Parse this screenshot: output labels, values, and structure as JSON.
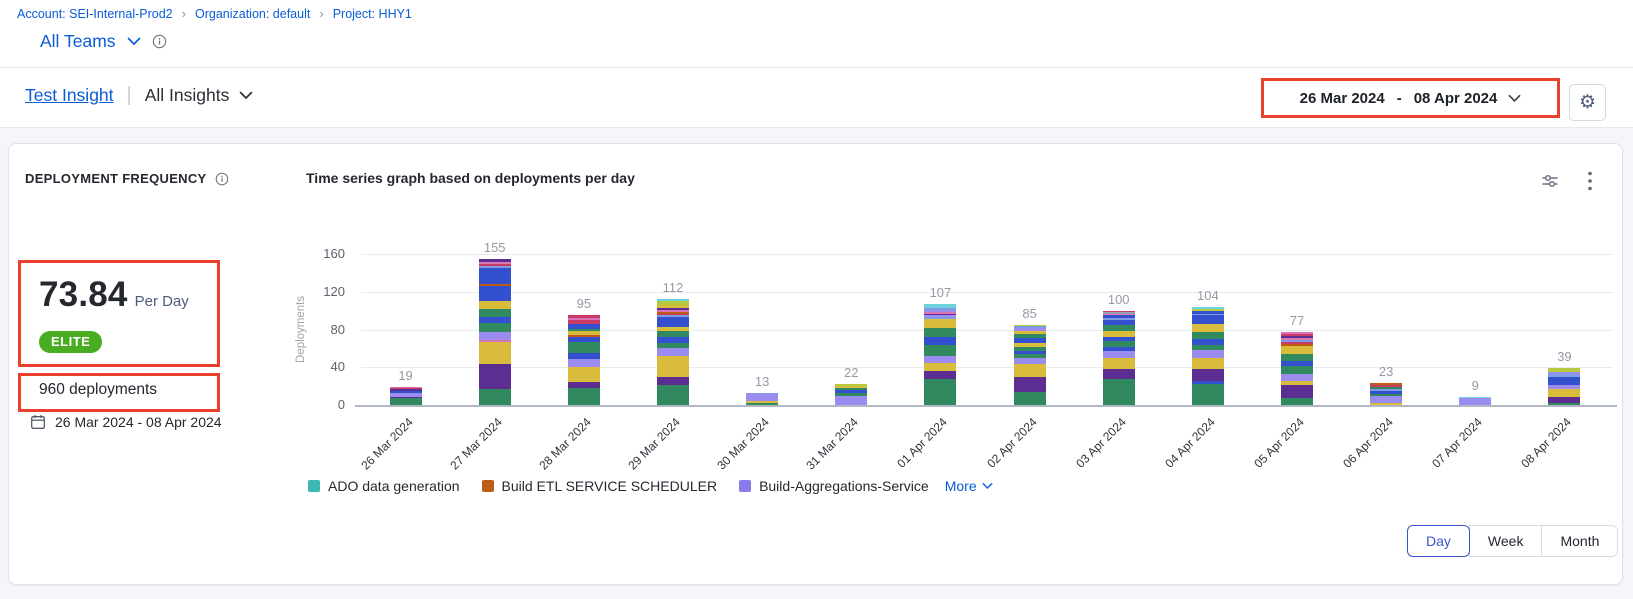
{
  "breadcrumb": {
    "items": [
      {
        "label": "Account: SEI-Internal-Prod2"
      },
      {
        "label": "Organization: default"
      },
      {
        "label": "Project: HHY1"
      }
    ]
  },
  "teams": {
    "label": "All Teams"
  },
  "insight": {
    "name": "Test Insight",
    "scope": "All Insights"
  },
  "date_range": {
    "start": "26 Mar 2024",
    "separator": "-",
    "end": "08 Apr 2024"
  },
  "widget": {
    "title": "DEPLOYMENT FREQUENCY",
    "metric_value": "73.84",
    "metric_unit": "Per Day",
    "badge": "ELITE",
    "total_label": "960 deployments",
    "period": "26 Mar 2024 - 08 Apr 2024"
  },
  "legend_more": "More",
  "granularity": {
    "options": [
      "Day",
      "Week",
      "Month"
    ],
    "selected": "Day"
  },
  "colors": {
    "accent_blue": "#0b5cd7",
    "annotation_red": "#e8402c",
    "badge_green": "#4aad21"
  },
  "chart_data": {
    "type": "bar",
    "stacked": true,
    "title": "Time series graph based on deployments per day",
    "xlabel": "",
    "ylabel": "Deployments",
    "ylim": [
      0,
      160
    ],
    "yticks": [
      0,
      40,
      80,
      120,
      160
    ],
    "grid": true,
    "legend_position": "bottom",
    "categories": [
      "26 Mar 2024",
      "27 Mar 2024",
      "28 Mar 2024",
      "29 Mar 2024",
      "30 Mar 2024",
      "31 Mar 2024",
      "01 Apr 2024",
      "02 Apr 2024",
      "03 Apr 2024",
      "04 Apr 2024",
      "05 Apr 2024",
      "06 Apr 2024",
      "07 Apr 2024",
      "08 Apr 2024"
    ],
    "totals": [
      19,
      155,
      95,
      112,
      13,
      22,
      107,
      85,
      100,
      104,
      77,
      23,
      9,
      39
    ],
    "legend": [
      {
        "label": "ADO data generation",
        "color": "#3CB8B2"
      },
      {
        "label": "Build ETL SERVICE SCHEDULER",
        "color": "#BE5B17"
      },
      {
        "label": "Build-Aggregations-Service",
        "color": "#8A7BEB"
      }
    ],
    "palette": {
      "green": "#318A5F",
      "darkpurple": "#5C2E91",
      "gold": "#D9BC3C",
      "lavender": "#9C8CF0",
      "blue": "#3351CE",
      "orange": "#C05B16",
      "crimson": "#C93A66",
      "pink": "#DA74B6",
      "lightblue": "#7E9CE3",
      "cyan": "#6ED2DC",
      "yellowgreen": "#B6C93F",
      "slate": "#98A0B4"
    },
    "bars": [
      {
        "label": "26 Mar 2024",
        "total": 19,
        "segments": [
          [
            "green",
            7
          ],
          [
            "darkpurple",
            2
          ],
          [
            "lavender",
            4
          ],
          [
            "blue",
            2
          ],
          [
            "darkpurple",
            2
          ],
          [
            "crimson",
            1
          ],
          [
            "pink",
            1
          ]
        ]
      },
      {
        "label": "27 Mar 2024",
        "total": 155,
        "segments": [
          [
            "green",
            17
          ],
          [
            "darkpurple",
            26
          ],
          [
            "gold",
            24
          ],
          [
            "pink",
            2
          ],
          [
            "lavender",
            8
          ],
          [
            "green",
            10
          ],
          [
            "blue",
            6
          ],
          [
            "green",
            9
          ],
          [
            "gold",
            8
          ],
          [
            "blue",
            16
          ],
          [
            "orange",
            2
          ],
          [
            "blue",
            17
          ],
          [
            "lightblue",
            2
          ],
          [
            "crimson",
            3
          ],
          [
            "pink",
            2
          ],
          [
            "darkpurple",
            3
          ]
        ]
      },
      {
        "label": "28 Mar 2024",
        "total": 95,
        "segments": [
          [
            "green",
            18
          ],
          [
            "darkpurple",
            6
          ],
          [
            "gold",
            16
          ],
          [
            "lavender",
            9
          ],
          [
            "blue",
            6
          ],
          [
            "green",
            12
          ],
          [
            "blue",
            5
          ],
          [
            "orange",
            2
          ],
          [
            "gold",
            4
          ],
          [
            "green",
            3
          ],
          [
            "blue",
            5
          ],
          [
            "crimson",
            4
          ],
          [
            "pink",
            2
          ],
          [
            "crimson",
            3
          ]
        ]
      },
      {
        "label": "29 Mar 2024",
        "total": 112,
        "segments": [
          [
            "green",
            21
          ],
          [
            "darkpurple",
            9
          ],
          [
            "gold",
            22
          ],
          [
            "lavender",
            8
          ],
          [
            "green",
            6
          ],
          [
            "blue",
            6
          ],
          [
            "green",
            6
          ],
          [
            "gold",
            5
          ],
          [
            "blue",
            10
          ],
          [
            "lightblue",
            2
          ],
          [
            "crimson",
            2
          ],
          [
            "orange",
            2
          ],
          [
            "pink",
            2
          ],
          [
            "darkpurple",
            2
          ],
          [
            "gold",
            3
          ],
          [
            "yellowgreen",
            4
          ],
          [
            "cyan",
            2
          ]
        ]
      },
      {
        "label": "30 Mar 2024",
        "total": 13,
        "segments": [
          [
            "green",
            2
          ],
          [
            "gold",
            2
          ],
          [
            "lavender",
            8
          ],
          [
            "lightblue",
            1
          ]
        ]
      },
      {
        "label": "31 Mar 2024",
        "total": 22,
        "segments": [
          [
            "lavender",
            10
          ],
          [
            "green",
            3
          ],
          [
            "blue",
            3
          ],
          [
            "green",
            2
          ],
          [
            "gold",
            2
          ],
          [
            "yellowgreen",
            2
          ]
        ]
      },
      {
        "label": "01 Apr 2024",
        "total": 107,
        "segments": [
          [
            "green",
            28
          ],
          [
            "darkpurple",
            8
          ],
          [
            "gold",
            8
          ],
          [
            "lavender",
            8
          ],
          [
            "green",
            12
          ],
          [
            "blue",
            8
          ],
          [
            "green",
            10
          ],
          [
            "gold",
            9
          ],
          [
            "lightblue",
            2
          ],
          [
            "lavender",
            2
          ],
          [
            "darkpurple",
            2
          ],
          [
            "pink",
            2
          ],
          [
            "lavender",
            2
          ],
          [
            "lightblue",
            2
          ],
          [
            "cyan",
            4
          ]
        ]
      },
      {
        "label": "02 Apr 2024",
        "total": 85,
        "segments": [
          [
            "green",
            14
          ],
          [
            "darkpurple",
            16
          ],
          [
            "gold",
            14
          ],
          [
            "lavender",
            6
          ],
          [
            "green",
            4
          ],
          [
            "blue",
            3
          ],
          [
            "green",
            4
          ],
          [
            "gold",
            5
          ],
          [
            "blue",
            5
          ],
          [
            "green",
            4
          ],
          [
            "gold",
            4
          ],
          [
            "lavender",
            3
          ],
          [
            "lightblue",
            2
          ],
          [
            "yellowgreen",
            1
          ]
        ]
      },
      {
        "label": "03 Apr 2024",
        "total": 100,
        "segments": [
          [
            "green",
            28
          ],
          [
            "darkpurple",
            10
          ],
          [
            "gold",
            12
          ],
          [
            "lavender",
            7
          ],
          [
            "blue",
            5
          ],
          [
            "green",
            6
          ],
          [
            "blue",
            4
          ],
          [
            "gold",
            7
          ],
          [
            "green",
            6
          ],
          [
            "blue",
            5
          ],
          [
            "lightblue",
            2
          ],
          [
            "blue",
            3
          ],
          [
            "pink",
            2
          ],
          [
            "slate",
            2
          ],
          [
            "crimson",
            1
          ]
        ]
      },
      {
        "label": "04 Apr 2024",
        "total": 104,
        "segments": [
          [
            "green",
            22
          ],
          [
            "blue",
            3
          ],
          [
            "darkpurple",
            13
          ],
          [
            "gold",
            12
          ],
          [
            "lavender",
            8
          ],
          [
            "green",
            6
          ],
          [
            "blue",
            6
          ],
          [
            "green",
            7
          ],
          [
            "gold",
            9
          ],
          [
            "blue",
            9
          ],
          [
            "lightblue",
            2
          ],
          [
            "blue",
            3
          ],
          [
            "yellowgreen",
            2
          ],
          [
            "cyan",
            2
          ]
        ]
      },
      {
        "label": "05 Apr 2024",
        "total": 77,
        "segments": [
          [
            "green",
            7
          ],
          [
            "darkpurple",
            14
          ],
          [
            "gold",
            4
          ],
          [
            "lavender",
            8
          ],
          [
            "green",
            8
          ],
          [
            "blue",
            6
          ],
          [
            "green",
            7
          ],
          [
            "gold",
            9
          ],
          [
            "orange",
            2
          ],
          [
            "crimson",
            2
          ],
          [
            "lightblue",
            2
          ],
          [
            "pink",
            2
          ],
          [
            "darkpurple",
            2
          ],
          [
            "crimson",
            2
          ],
          [
            "pink",
            2
          ]
        ]
      },
      {
        "label": "06 Apr 2024",
        "total": 23,
        "segments": [
          [
            "gold",
            2
          ],
          [
            "lavender",
            8
          ],
          [
            "green",
            2
          ],
          [
            "blue",
            3
          ],
          [
            "lightblue",
            2
          ],
          [
            "green",
            2
          ],
          [
            "crimson",
            2
          ],
          [
            "orange",
            2
          ]
        ]
      },
      {
        "label": "07 Apr 2024",
        "total": 9,
        "segments": [
          [
            "lavender",
            7
          ],
          [
            "cyan",
            2
          ]
        ]
      },
      {
        "label": "08 Apr 2024",
        "total": 39,
        "segments": [
          [
            "green",
            2
          ],
          [
            "darkpurple",
            7
          ],
          [
            "gold",
            8
          ],
          [
            "lavender",
            4
          ],
          [
            "blue",
            5
          ],
          [
            "blue",
            4
          ],
          [
            "lightblue",
            3
          ],
          [
            "lavender",
            2
          ],
          [
            "yellowgreen",
            4
          ]
        ]
      }
    ]
  }
}
